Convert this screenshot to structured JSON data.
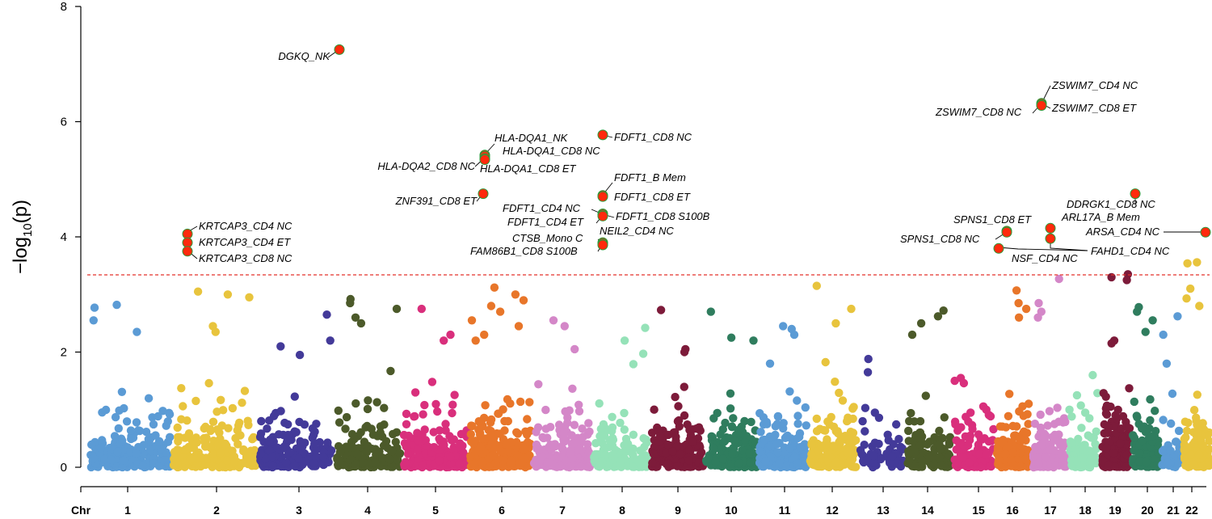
{
  "chart_data": {
    "type": "scatter",
    "subtype": "manhattan",
    "title": "",
    "xlabel": "Chr",
    "ylabel": "−log10(p)",
    "ylim": [
      0,
      8
    ],
    "yticks": [
      0,
      2,
      4,
      6,
      8
    ],
    "grid": false,
    "threshold": {
      "value": 3.34,
      "color": "#e3312b",
      "style": "dashed"
    },
    "chromosomes": [
      {
        "label": "1",
        "color": "#5b9bd5",
        "n": 220,
        "seed": 11,
        "extra": [
          2.82,
          2.77,
          2.55,
          2.35
        ]
      },
      {
        "label": "2",
        "color": "#e8c43d",
        "n": 210,
        "seed": 22,
        "extra": [
          3.05,
          3.0,
          2.95,
          2.45,
          2.35
        ]
      },
      {
        "label": "3",
        "color": "#433a99",
        "n": 180,
        "seed": 33,
        "extra": [
          2.65,
          2.2,
          2.1,
          1.95
        ]
      },
      {
        "label": "4",
        "color": "#4c5a2a",
        "n": 170,
        "seed": 44,
        "extra": [
          2.92,
          2.85,
          2.75,
          2.6,
          2.5
        ]
      },
      {
        "label": "5",
        "color": "#d92f7c",
        "n": 190,
        "seed": 55,
        "extra": [
          2.75,
          2.3,
          2.2
        ]
      },
      {
        "label": "6",
        "color": "#e8762a",
        "n": 240,
        "seed": 66,
        "extra": [
          3.12,
          3.0,
          2.9,
          2.8,
          2.7,
          2.55,
          2.45,
          2.3,
          2.2
        ]
      },
      {
        "label": "7",
        "color": "#d487c8",
        "n": 200,
        "seed": 77,
        "extra": [
          2.55,
          2.45,
          2.05
        ]
      },
      {
        "label": "8",
        "color": "#95e2b8",
        "n": 140,
        "seed": 88,
        "extra": [
          2.42,
          2.2,
          1.97
        ]
      },
      {
        "label": "9",
        "color": "#7d1b3a",
        "n": 150,
        "seed": 99,
        "extra": [
          2.73,
          2.05,
          2.0
        ]
      },
      {
        "label": "10",
        "color": "#2f7d5e",
        "n": 160,
        "seed": 110,
        "extra": [
          2.7,
          2.25,
          2.2
        ]
      },
      {
        "label": "11",
        "color": "#5b9bd5",
        "n": 190,
        "seed": 121,
        "extra": [
          2.45,
          2.4,
          2.3
        ]
      },
      {
        "label": "12",
        "color": "#e8c43d",
        "n": 170,
        "seed": 132,
        "extra": [
          3.15,
          2.75,
          2.5
        ]
      },
      {
        "label": "13",
        "color": "#433a99",
        "n": 55,
        "seed": 143,
        "extra": [
          1.88,
          1.65
        ]
      },
      {
        "label": "14",
        "color": "#4c5a2a",
        "n": 120,
        "seed": 154,
        "extra": [
          2.72,
          2.62,
          2.5,
          2.3
        ]
      },
      {
        "label": "15",
        "color": "#d92f7c",
        "n": 120,
        "seed": 165,
        "extra": [
          1.55,
          1.5
        ]
      },
      {
        "label": "16",
        "color": "#e8762a",
        "n": 130,
        "seed": 176,
        "extra": [
          3.07,
          2.85,
          2.75,
          2.6
        ]
      },
      {
        "label": "17",
        "color": "#d487c8",
        "n": 150,
        "seed": 187,
        "extra": [
          3.27,
          2.85,
          2.7,
          2.6
        ]
      },
      {
        "label": "18",
        "color": "#95e2b8",
        "n": 80,
        "seed": 198,
        "extra": [
          1.6,
          1.25
        ]
      },
      {
        "label": "19",
        "color": "#7d1b3a",
        "n": 210,
        "seed": 209,
        "extra": [
          3.35,
          3.3,
          3.25,
          2.2,
          2.15
        ]
      },
      {
        "label": "20",
        "color": "#2f7d5e",
        "n": 130,
        "seed": 220,
        "extra": [
          2.78,
          2.7,
          2.55,
          2.35
        ]
      },
      {
        "label": "21",
        "color": "#5b9bd5",
        "n": 45,
        "seed": 231,
        "extra": [
          2.62,
          2.3,
          1.8
        ]
      },
      {
        "label": "22",
        "color": "#e8c43d",
        "n": 120,
        "seed": 242,
        "extra": [
          3.56,
          3.54,
          3.1,
          2.93,
          2.8
        ]
      }
    ],
    "hits": [
      {
        "chr": "2",
        "label": "KRTCAP3_CD4 NC",
        "y": 4.05
      },
      {
        "chr": "2",
        "label": "KRTCAP3_CD4 ET",
        "y": 3.9
      },
      {
        "chr": "2",
        "label": "KRTCAP3_CD8 NC",
        "y": 3.75
      },
      {
        "chr": "4",
        "label": "DGKQ_NK",
        "y": 7.25
      },
      {
        "chr": "6",
        "label": "HLA-DQA1_NK",
        "y": 5.42
      },
      {
        "chr": "6",
        "label": "HLA-DQA1_CD8 NC",
        "y": 5.4
      },
      {
        "chr": "6",
        "label": "HLA-DQA2_CD8 NC",
        "y": 5.36
      },
      {
        "chr": "6",
        "label": "HLA-DQA1_CD8 ET",
        "y": 5.34
      },
      {
        "chr": "6",
        "label": "ZNF391_CD8 ET",
        "y": 4.75
      },
      {
        "chr": "8",
        "label": "FDFT1_CD8 NC",
        "y": 5.77
      },
      {
        "chr": "8",
        "label": "FDFT1_B Mem",
        "y": 4.72
      },
      {
        "chr": "8",
        "label": "FDFT1_CD8 ET",
        "y": 4.7
      },
      {
        "chr": "8",
        "label": "FDFT1_CD4 NC",
        "y": 4.4
      },
      {
        "chr": "8",
        "label": "FDFT1_CD4 ET",
        "y": 4.38
      },
      {
        "chr": "8",
        "label": "FDFT1_CD8 S100B",
        "y": 4.36
      },
      {
        "chr": "8",
        "label": "NEIL2_CD4 NC",
        "y": 3.9
      },
      {
        "chr": "8",
        "label": "CTSB_Mono C",
        "y": 3.88
      },
      {
        "chr": "8",
        "label": "FAM86B1_CD8 S100B",
        "y": 3.86
      },
      {
        "chr": "16",
        "label": "SPNS1_CD8 ET",
        "y": 4.1
      },
      {
        "chr": "16",
        "label": "SPNS1_CD8 NC",
        "y": 4.08
      },
      {
        "chr": "16",
        "label": "NSF_CD4 NC",
        "y": 3.8
      },
      {
        "chr": "17",
        "label": "ZSWIM7_CD4 NC",
        "y": 6.32
      },
      {
        "chr": "17",
        "label": "ZSWIM7_CD8 NC",
        "y": 6.3
      },
      {
        "chr": "17",
        "label": "ZSWIM7_CD8 ET",
        "y": 6.28
      },
      {
        "chr": "17",
        "label": "ARL17A_B Mem",
        "y": 4.15
      },
      {
        "chr": "17",
        "label": "FAHD1_CD4 NC",
        "y": 3.97
      },
      {
        "chr": "20",
        "label": "DDRGK1_CD8 NC",
        "y": 4.75
      },
      {
        "chr": "22",
        "label": "ARSA_CD4 NC",
        "y": 4.08
      }
    ],
    "hit_color": "#ff2a0d",
    "hit_outline": "#2a9a3a"
  }
}
